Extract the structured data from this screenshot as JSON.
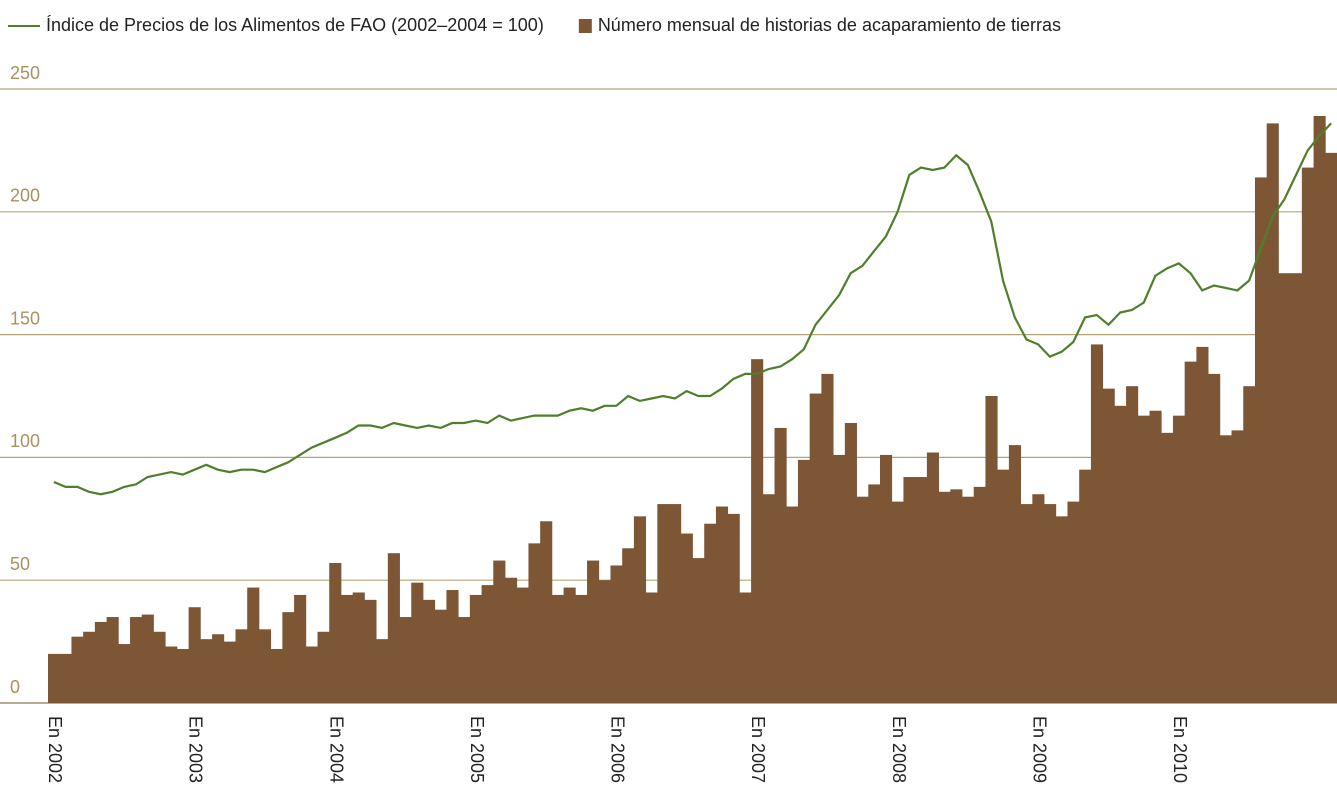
{
  "chart_data": {
    "type": "bar",
    "categories": [
      "En 2002",
      null,
      null,
      null,
      null,
      null,
      null,
      null,
      null,
      null,
      null,
      null,
      "En 2003",
      null,
      null,
      null,
      null,
      null,
      null,
      null,
      null,
      null,
      null,
      null,
      "En 2004",
      null,
      null,
      null,
      null,
      null,
      null,
      null,
      null,
      null,
      null,
      null,
      "En 2005",
      null,
      null,
      null,
      null,
      null,
      null,
      null,
      null,
      null,
      null,
      null,
      "En 2006",
      null,
      null,
      null,
      null,
      null,
      null,
      null,
      null,
      null,
      null,
      null,
      "En 2007",
      null,
      null,
      null,
      null,
      null,
      null,
      null,
      null,
      null,
      null,
      null,
      "En 2008",
      null,
      null,
      null,
      null,
      null,
      null,
      null,
      null,
      null,
      null,
      null,
      "En 2009",
      null,
      null,
      null,
      null,
      null,
      null,
      null,
      null,
      null,
      null,
      null,
      "En 2010",
      null,
      null,
      null,
      null,
      null,
      null,
      null,
      null,
      null,
      null,
      null,
      null,
      null
    ],
    "series": [
      {
        "name": "Número mensual de historias de acaparamiento de tierras",
        "type": "bar",
        "color": "#7d5735",
        "values": [
          20,
          20,
          27,
          29,
          33,
          35,
          24,
          35,
          36,
          29,
          23,
          22,
          39,
          26,
          28,
          25,
          30,
          47,
          30,
          22,
          37,
          44,
          23,
          29,
          57,
          44,
          45,
          42,
          26,
          61,
          35,
          49,
          42,
          38,
          46,
          35,
          44,
          48,
          58,
          51,
          47,
          65,
          74,
          44,
          47,
          44,
          58,
          50,
          56,
          63,
          76,
          45,
          81,
          81,
          69,
          59,
          73,
          80,
          77,
          45,
          140,
          85,
          112,
          80,
          99,
          126,
          134,
          101,
          114,
          84,
          89,
          101,
          82,
          92,
          92,
          102,
          86,
          87,
          84,
          88,
          125,
          95,
          105,
          81,
          85,
          81,
          76,
          82,
          95,
          146,
          128,
          121,
          129,
          117,
          119,
          110,
          117,
          139,
          145,
          134,
          109,
          111,
          129,
          214,
          236,
          175,
          175,
          218,
          239,
          224
        ]
      },
      {
        "name": "Índice de Precios de los Alimentos de FAO (2002–2004 = 100)",
        "type": "line",
        "color": "#4f7f2a",
        "values": [
          90,
          88,
          88,
          86,
          85,
          86,
          88,
          89,
          92,
          93,
          94,
          93,
          95,
          97,
          95,
          94,
          95,
          95,
          94,
          96,
          98,
          101,
          104,
          106,
          108,
          110,
          113,
          113,
          112,
          114,
          113,
          112,
          113,
          112,
          114,
          114,
          115,
          114,
          117,
          115,
          116,
          117,
          117,
          117,
          119,
          120,
          119,
          121,
          121,
          125,
          123,
          124,
          125,
          124,
          127,
          125,
          125,
          128,
          132,
          134,
          134,
          136,
          137,
          140,
          144,
          154,
          160,
          166,
          175,
          178,
          184,
          190,
          200,
          215,
          218,
          217,
          218,
          223,
          219,
          208,
          196,
          172,
          157,
          148,
          146,
          141,
          143,
          147,
          157,
          158,
          154,
          159,
          160,
          163,
          174,
          177,
          179,
          175,
          168,
          170,
          169,
          168,
          172,
          185,
          198,
          205,
          215,
          225,
          231,
          236
        ]
      }
    ],
    "ylim": [
      0,
      250
    ],
    "yticks": [
      0,
      50,
      100,
      150,
      200,
      250
    ],
    "grid": true
  }
}
